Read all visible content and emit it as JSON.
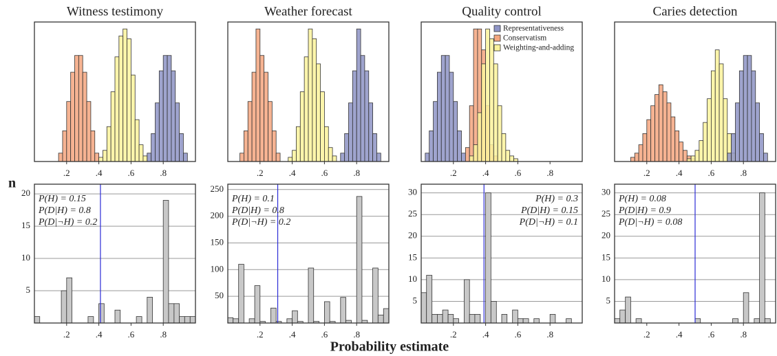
{
  "xlabel": "Probability estimate",
  "ylabel": "n",
  "chart_data": [
    {
      "type": "histogram",
      "title": "Witness testimony",
      "xlim": [
        0,
        1
      ],
      "xticks": [
        {
          "value": 0.2,
          "label": ".2"
        },
        {
          "value": 0.4,
          "label": ".4"
        },
        {
          "value": 0.6,
          "label": ".6"
        },
        {
          "value": 0.8,
          "label": ".8"
        }
      ],
      "ylim": [
        0,
        100
      ],
      "series": [
        {
          "color": "#f4a67f",
          "bins": [
            0.15,
            0.175,
            0.2,
            0.225,
            0.25,
            0.275,
            0.3,
            0.325,
            0.35,
            0.375,
            0.4
          ],
          "values": [
            6,
            22,
            43,
            64,
            76,
            76,
            64,
            43,
            22,
            6
          ]
        },
        {
          "color": "#fbf39c",
          "bins": [
            0.4,
            0.425,
            0.45,
            0.475,
            0.5,
            0.525,
            0.55,
            0.575,
            0.6,
            0.625,
            0.65,
            0.675,
            0.7
          ],
          "values": [
            3,
            8,
            25,
            50,
            75,
            90,
            95,
            88,
            62,
            30,
            12,
            4
          ]
        },
        {
          "color": "#8e94c6",
          "bins": [
            0.7,
            0.725,
            0.75,
            0.775,
            0.8,
            0.825,
            0.85,
            0.875,
            0.9,
            0.925,
            0.95
          ],
          "values": [
            6,
            20,
            42,
            65,
            76,
            76,
            65,
            42,
            20,
            6
          ]
        }
      ]
    },
    {
      "type": "histogram",
      "title": "Weather forecast",
      "xlim": [
        0,
        1
      ],
      "xticks": [
        {
          "value": 0.2,
          "label": ".2"
        },
        {
          "value": 0.4,
          "label": ".4"
        },
        {
          "value": 0.6,
          "label": ".6"
        },
        {
          "value": 0.8,
          "label": ".8"
        }
      ],
      "ylim": [
        0,
        100
      ],
      "series": [
        {
          "color": "#f4a67f",
          "bins": [
            0.075,
            0.1,
            0.125,
            0.15,
            0.175,
            0.2,
            0.225,
            0.25,
            0.275,
            0.3,
            0.325
          ],
          "values": [
            6,
            22,
            43,
            64,
            95,
            76,
            64,
            43,
            22,
            6
          ]
        },
        {
          "color": "#fbf39c",
          "bins": [
            0.375,
            0.4,
            0.425,
            0.45,
            0.475,
            0.5,
            0.525,
            0.55,
            0.575,
            0.6,
            0.625,
            0.65,
            0.675
          ],
          "values": [
            3,
            8,
            25,
            50,
            75,
            95,
            88,
            70,
            50,
            25,
            10,
            4
          ]
        },
        {
          "color": "#8e94c6",
          "bins": [
            0.7,
            0.725,
            0.75,
            0.775,
            0.8,
            0.825,
            0.85,
            0.875,
            0.9,
            0.925,
            0.95
          ],
          "values": [
            6,
            20,
            42,
            65,
            95,
            76,
            65,
            42,
            20,
            6
          ]
        }
      ]
    },
    {
      "type": "histogram",
      "title": "Quality control",
      "xlim": [
        0,
        1
      ],
      "xticks": [
        {
          "value": 0.2,
          "label": ".2"
        },
        {
          "value": 0.4,
          "label": ".4"
        },
        {
          "value": 0.6,
          "label": ".6"
        },
        {
          "value": 0.8,
          "label": ".8"
        }
      ],
      "ylim": [
        0,
        100
      ],
      "legend": "upper right",
      "series": [
        {
          "name": "Representativeness",
          "color": "#8e94c6",
          "bins": [
            0.025,
            0.05,
            0.075,
            0.1,
            0.125,
            0.15,
            0.175,
            0.2,
            0.225,
            0.25,
            0.275
          ],
          "values": [
            6,
            22,
            43,
            64,
            76,
            76,
            64,
            43,
            22,
            6
          ]
        },
        {
          "name": "Conservatism",
          "color": "#f4a67f",
          "bins": [
            0.275,
            0.3,
            0.325,
            0.35,
            0.375,
            0.4,
            0.425,
            0.45,
            0.475
          ],
          "values": [
            10,
            40,
            95,
            95,
            80,
            40,
            12,
            4
          ]
        },
        {
          "name": "Weighting-and-adding",
          "color": "#fbf39c",
          "bins": [
            0.3,
            0.325,
            0.35,
            0.375,
            0.4,
            0.425,
            0.45,
            0.475,
            0.5,
            0.525,
            0.55,
            0.575,
            0.6
          ],
          "values": [
            4,
            12,
            35,
            70,
            95,
            88,
            70,
            40,
            20,
            8,
            4,
            2
          ]
        }
      ]
    },
    {
      "type": "histogram",
      "title": "Caries detection",
      "xlim": [
        0,
        1
      ],
      "xticks": [
        {
          "value": 0.2,
          "label": ".2"
        },
        {
          "value": 0.4,
          "label": ".4"
        },
        {
          "value": 0.6,
          "label": ".6"
        },
        {
          "value": 0.8,
          "label": ".8"
        }
      ],
      "ylim": [
        0,
        100
      ],
      "series": [
        {
          "color": "#f4a67f",
          "bins": [
            0.1,
            0.125,
            0.15,
            0.175,
            0.2,
            0.225,
            0.25,
            0.275,
            0.3,
            0.325,
            0.35,
            0.375,
            0.4,
            0.425,
            0.45,
            0.475,
            0.5
          ],
          "values": [
            3,
            6,
            12,
            20,
            30,
            40,
            48,
            55,
            50,
            42,
            32,
            22,
            14,
            8,
            4,
            2
          ]
        },
        {
          "color": "#fbf39c",
          "bins": [
            0.45,
            0.475,
            0.5,
            0.525,
            0.55,
            0.575,
            0.6,
            0.625,
            0.65,
            0.675,
            0.7,
            0.725,
            0.75
          ],
          "values": [
            2,
            4,
            8,
            15,
            28,
            45,
            65,
            80,
            70,
            45,
            20,
            6
          ]
        },
        {
          "color": "#8e94c6",
          "bins": [
            0.7,
            0.725,
            0.75,
            0.775,
            0.8,
            0.825,
            0.85,
            0.875,
            0.9,
            0.925,
            0.95
          ],
          "values": [
            6,
            20,
            42,
            65,
            76,
            76,
            65,
            42,
            20,
            6
          ]
        }
      ]
    },
    {
      "type": "histogram",
      "xlim": [
        0,
        1
      ],
      "xticks": [
        {
          "value": 0.2,
          "label": ".2"
        },
        {
          "value": 0.4,
          "label": ".4"
        },
        {
          "value": 0.6,
          "label": ".6"
        },
        {
          "value": 0.8,
          "label": ".8"
        }
      ],
      "ylim": [
        0,
        21.5
      ],
      "yticks": [
        5,
        10,
        15,
        20
      ],
      "grid": true,
      "color": "#c8c8c8",
      "bins": [
        0,
        0.033,
        0.067,
        0.1,
        0.133,
        0.167,
        0.2,
        0.233,
        0.267,
        0.3,
        0.333,
        0.367,
        0.4,
        0.433,
        0.467,
        0.5,
        0.533,
        0.567,
        0.6,
        0.633,
        0.667,
        0.7,
        0.733,
        0.767,
        0.8,
        0.833,
        0.867,
        0.9,
        0.933,
        0.967,
        1
      ],
      "values": [
        1,
        0,
        0,
        0,
        0,
        5,
        7,
        0,
        0,
        0,
        1,
        0,
        3,
        0,
        0,
        2,
        0,
        0,
        0,
        1,
        0,
        4,
        0,
        0,
        19,
        3,
        3,
        1,
        1,
        1
      ],
      "reference_x": 0.41,
      "reference_color": "#2b2bd6",
      "annotations": [
        "P(H) = 0.15",
        "P(D|H) = 0.8",
        "P(D|¬H) = 0.2"
      ],
      "annotation_corner": "upper left"
    },
    {
      "type": "histogram",
      "xlim": [
        0,
        1
      ],
      "xticks": [
        {
          "value": 0.2,
          "label": ".2"
        },
        {
          "value": 0.4,
          "label": ".4"
        },
        {
          "value": 0.6,
          "label": ".6"
        },
        {
          "value": 0.8,
          "label": ".8"
        }
      ],
      "ylim": [
        0,
        260
      ],
      "yticks": [
        50,
        100,
        150,
        200,
        250
      ],
      "grid": true,
      "color": "#c8c8c8",
      "bins": [
        0,
        0.033,
        0.067,
        0.1,
        0.133,
        0.167,
        0.2,
        0.233,
        0.267,
        0.3,
        0.333,
        0.367,
        0.4,
        0.433,
        0.467,
        0.5,
        0.533,
        0.567,
        0.6,
        0.633,
        0.667,
        0.7,
        0.733,
        0.767,
        0.8,
        0.833,
        0.867,
        0.9,
        0.933,
        0.967,
        1
      ],
      "values": [
        10,
        8,
        110,
        0,
        8,
        70,
        3,
        0,
        28,
        3,
        0,
        8,
        23,
        3,
        0,
        103,
        3,
        0,
        40,
        3,
        0,
        48,
        5,
        0,
        237,
        5,
        0,
        103,
        15,
        27
      ],
      "reference_x": 0.31,
      "reference_color": "#2b2bd6",
      "annotations": [
        "P(H) = 0.1",
        "P(D|H) = 0.8",
        "P(D|¬H) = 0.2"
      ],
      "annotation_corner": "upper left"
    },
    {
      "type": "histogram",
      "xlim": [
        0,
        1
      ],
      "xticks": [
        {
          "value": 0.2,
          "label": ".2"
        },
        {
          "value": 0.4,
          "label": ".4"
        },
        {
          "value": 0.6,
          "label": ".6"
        },
        {
          "value": 0.8,
          "label": ".8"
        }
      ],
      "ylim": [
        0,
        32
      ],
      "yticks": [
        5,
        10,
        15,
        20,
        25,
        30
      ],
      "grid": true,
      "color": "#c8c8c8",
      "bins": [
        0,
        0.033,
        0.067,
        0.1,
        0.133,
        0.167,
        0.2,
        0.233,
        0.267,
        0.3,
        0.333,
        0.367,
        0.4,
        0.433,
        0.467,
        0.5,
        0.533,
        0.567,
        0.6,
        0.633,
        0.667,
        0.7,
        0.733,
        0.767,
        0.8,
        0.833,
        0.867,
        0.9,
        0.933,
        0.967,
        1
      ],
      "values": [
        7,
        11,
        2,
        2,
        3,
        2,
        1,
        0,
        10,
        2,
        2,
        0,
        30,
        5,
        0,
        2,
        0,
        3,
        1,
        1,
        0,
        1,
        0,
        0,
        2,
        0,
        0,
        1,
        0,
        0
      ],
      "reference_x": 0.39,
      "reference_color": "#2b2bd6",
      "annotations": [
        "P(H) = 0.3",
        "P(D|H) = 0.15",
        "P(D|¬H) = 0.1"
      ],
      "annotation_corner": "upper right"
    },
    {
      "type": "histogram",
      "xlim": [
        0,
        1
      ],
      "xticks": [
        {
          "value": 0.2,
          "label": ".2"
        },
        {
          "value": 0.4,
          "label": ".4"
        },
        {
          "value": 0.6,
          "label": ".6"
        },
        {
          "value": 0.8,
          "label": ".8"
        }
      ],
      "ylim": [
        0,
        32
      ],
      "yticks": [
        5,
        10,
        15,
        20,
        25,
        30
      ],
      "grid": true,
      "color": "#c8c8c8",
      "bins": [
        0,
        0.033,
        0.067,
        0.1,
        0.133,
        0.167,
        0.2,
        0.233,
        0.267,
        0.3,
        0.333,
        0.367,
        0.4,
        0.433,
        0.467,
        0.5,
        0.533,
        0.567,
        0.6,
        0.633,
        0.667,
        0.7,
        0.733,
        0.767,
        0.8,
        0.833,
        0.867,
        0.9,
        0.933,
        0.967,
        1
      ],
      "values": [
        1,
        3,
        6,
        0,
        1,
        0,
        0,
        0,
        0,
        0,
        0,
        0,
        0,
        0,
        0,
        1,
        0,
        0,
        0,
        0,
        0,
        0,
        1,
        0,
        7,
        0,
        1,
        30,
        1,
        0
      ],
      "reference_x": 0.5,
      "reference_color": "#2b2bd6",
      "annotations": [
        "P(H) = 0.08",
        "P(D|H) = 0.9",
        "P(D|¬H) = 0.08"
      ],
      "annotation_corner": "upper left"
    }
  ]
}
